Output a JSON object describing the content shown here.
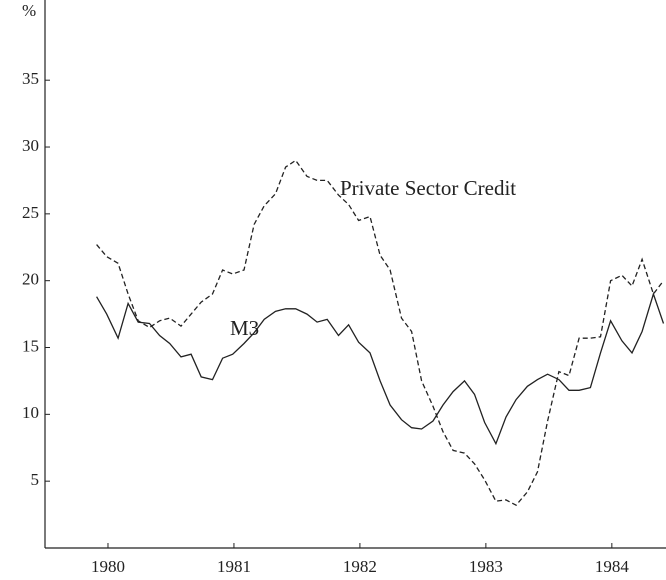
{
  "chart_data": {
    "type": "line",
    "y_unit": "%",
    "x": [
      1980.41,
      1980.49,
      1980.58,
      1980.66,
      1980.74,
      1980.83,
      1980.91,
      1980.99,
      1981.08,
      1981.16,
      1981.24,
      1981.33,
      1981.41,
      1981.49,
      1981.58,
      1981.66,
      1981.74,
      1981.83,
      1981.91,
      1981.99,
      1982.08,
      1982.16,
      1982.24,
      1982.33,
      1982.41,
      1982.49,
      1982.58,
      1982.66,
      1982.74,
      1982.83,
      1982.91,
      1982.99,
      1983.08,
      1983.16,
      1983.24,
      1983.33,
      1983.41,
      1983.49,
      1983.58,
      1983.66,
      1983.74,
      1983.83,
      1983.91,
      1983.99,
      1984.08,
      1984.16,
      1984.24,
      1984.33,
      1984.41,
      1984.49,
      1984.58,
      1984.66,
      1984.74,
      1984.83,
      1984.91
    ],
    "series": [
      {
        "name": "M3",
        "color": "#222222",
        "dashed": false,
        "values": [
          18.8,
          17.5,
          15.7,
          18.3,
          16.9,
          16.8,
          15.9,
          15.3,
          14.3,
          14.5,
          12.8,
          12.6,
          14.2,
          14.5,
          15.3,
          16.1,
          17.1,
          17.7,
          17.9,
          17.9,
          17.5,
          16.9,
          17.1,
          15.9,
          16.7,
          15.4,
          14.6,
          12.5,
          10.7,
          9.6,
          9.0,
          8.9,
          9.5,
          10.7,
          11.7,
          12.5,
          11.5,
          9.4,
          7.8,
          9.8,
          11.1,
          12.1,
          12.6,
          13.0,
          12.6,
          11.8,
          11.8,
          12.0,
          14.6,
          17.0,
          15.5,
          14.6,
          16.2,
          19.0,
          16.8
        ]
      },
      {
        "name": "Private Sector Credit",
        "color": "#222222",
        "dashed": true,
        "values": [
          22.7,
          21.8,
          21.3,
          19.0,
          17.0,
          16.5,
          17.0,
          17.2,
          16.6,
          17.5,
          18.4,
          19.0,
          20.8,
          20.5,
          20.8,
          24.2,
          25.6,
          26.5,
          28.5,
          29.0,
          27.8,
          27.5,
          27.5,
          26.4,
          25.7,
          24.5,
          24.8,
          21.9,
          20.8,
          17.2,
          16.2,
          12.5,
          10.6,
          8.7,
          7.3,
          7.1,
          6.3,
          5.1,
          3.5,
          3.6,
          3.2,
          4.2,
          5.7,
          9.5,
          13.2,
          12.9,
          15.7,
          15.7,
          15.8,
          20.0,
          20.4,
          19.6,
          21.6,
          19.0,
          20.0
        ]
      }
    ],
    "xlim": [
      1980,
      1984.93
    ],
    "xticks": [
      {
        "value": 1980.5,
        "label": "1980"
      },
      {
        "value": 1981.5,
        "label": "1981"
      },
      {
        "value": 1982.5,
        "label": "1982"
      },
      {
        "value": 1983.5,
        "label": "1983"
      },
      {
        "value": 1984.5,
        "label": "1984"
      }
    ],
    "ylim": [
      0,
      41
    ],
    "yticks": [
      5,
      10,
      15,
      20,
      25,
      30,
      35
    ],
    "grid": false
  }
}
